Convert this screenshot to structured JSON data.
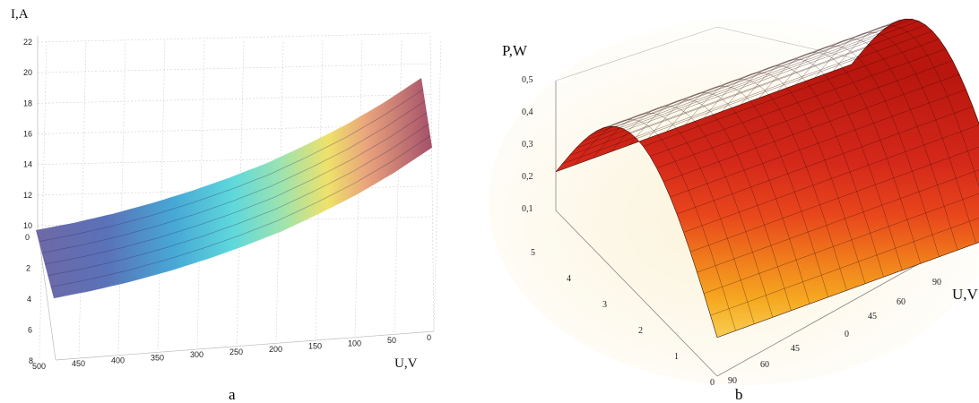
{
  "chart_data": [
    {
      "type": "surface3d",
      "panel_label": "a",
      "z_axis_title": "I,A",
      "x_axis_title": "U,V",
      "z_ticks": [
        "22",
        "20",
        "18",
        "16",
        "14",
        "12",
        "10"
      ],
      "x_ticks": [
        "500",
        "450",
        "400",
        "350",
        "300",
        "250",
        "200",
        "150",
        "100",
        "50",
        "0"
      ],
      "depth_ticks": [
        "0",
        "2",
        "4",
        "6",
        "8"
      ],
      "x_range": [
        0,
        500
      ],
      "z_range": [
        10,
        22
      ],
      "depth_range": [
        0,
        8
      ],
      "surface": {
        "x": [
          500,
          450,
          400,
          350,
          300,
          250,
          200,
          150,
          100,
          50,
          0
        ],
        "z": [
          10.3,
          10.8,
          11.4,
          12.1,
          12.9,
          13.8,
          14.8,
          16.0,
          17.3,
          18.8,
          20.5
        ]
      },
      "colormap": "parula-like",
      "grid": true
    },
    {
      "type": "surface3d",
      "panel_label": "b",
      "z_axis_title": "P,W",
      "x_axis_title": "U,V",
      "z_ticks": [
        "0,5",
        "0,4",
        "0,3",
        "0,2",
        "0,1"
      ],
      "depth_ticks": [
        "5",
        "4",
        "3",
        "2",
        "1",
        "0"
      ],
      "front_ticks": [
        "90",
        "60",
        "45"
      ],
      "side_ticks": [
        "0",
        "45",
        "60",
        "90"
      ],
      "z_range": [
        0,
        0.5
      ],
      "surface": {
        "shape": "half-sine dome",
        "peak": 0.48,
        "edge": 0.12
      },
      "colormap": "yellow-orange-red",
      "grid": true
    }
  ]
}
